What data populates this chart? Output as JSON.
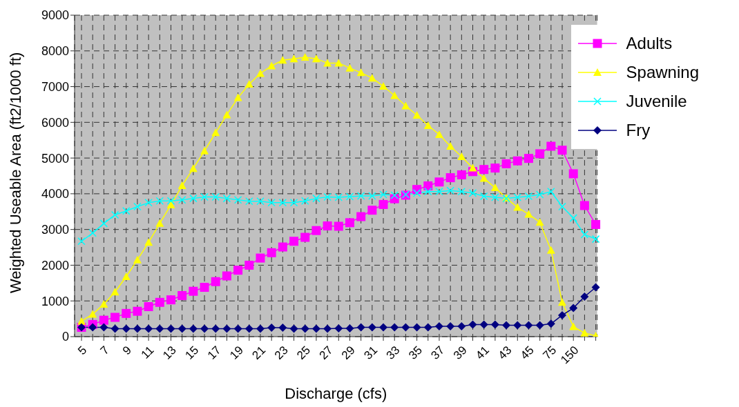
{
  "chart_data": {
    "type": "line",
    "xlabel": "Discharge (cfs)",
    "ylabel": "Weighted Useable Area (ft2/1000  ft)",
    "categories": [
      "5",
      null,
      "7",
      null,
      "9",
      null,
      "11",
      null,
      "13",
      null,
      "15",
      null,
      "17",
      null,
      "19",
      null,
      "21",
      null,
      "23",
      null,
      "25",
      null,
      "27",
      null,
      "29",
      null,
      "31",
      null,
      "33",
      null,
      "35",
      null,
      "37",
      null,
      "39",
      null,
      "41",
      null,
      "43",
      null,
      "45",
      null,
      "75",
      null,
      "150",
      null,
      null
    ],
    "ylim": [
      0,
      9000
    ],
    "yticks": [
      0,
      1000,
      2000,
      3000,
      4000,
      5000,
      6000,
      7000,
      8000,
      9000
    ],
    "grid": true,
    "legend": "top right",
    "line_style": "solid",
    "series": [
      {
        "name": "Adults",
        "color": "#ff00ff",
        "marker": "square",
        "values": [
          260,
          340,
          460,
          540,
          650,
          710,
          840,
          960,
          1030,
          1150,
          1270,
          1380,
          1540,
          1700,
          1860,
          2000,
          2200,
          2350,
          2510,
          2670,
          2780,
          2970,
          3100,
          3090,
          3190,
          3360,
          3540,
          3700,
          3860,
          3960,
          4120,
          4220,
          4330,
          4450,
          4530,
          4620,
          4680,
          4720,
          4840,
          4920,
          4990,
          5120,
          5330,
          5220,
          4560,
          3670,
          3140
        ]
      },
      {
        "name": "Spawning",
        "color": "#ffff00",
        "marker": "triangle",
        "values": [
          430,
          630,
          910,
          1250,
          1680,
          2150,
          2640,
          3170,
          3690,
          4230,
          4710,
          5200,
          5710,
          6210,
          6690,
          7070,
          7370,
          7580,
          7740,
          7780,
          7820,
          7780,
          7660,
          7660,
          7520,
          7390,
          7240,
          7010,
          6750,
          6460,
          6200,
          5910,
          5660,
          5330,
          5040,
          4720,
          4430,
          4170,
          3880,
          3620,
          3430,
          3200,
          2420,
          960,
          280,
          100,
          20
        ]
      },
      {
        "name": "Juvenile",
        "color": "#00ffff",
        "marker": "cross",
        "values": [
          2670,
          2900,
          3170,
          3410,
          3520,
          3640,
          3750,
          3800,
          3800,
          3830,
          3870,
          3910,
          3910,
          3870,
          3830,
          3790,
          3790,
          3750,
          3750,
          3750,
          3800,
          3870,
          3910,
          3900,
          3920,
          3940,
          3940,
          3980,
          3960,
          3980,
          4020,
          4060,
          4060,
          4090,
          4060,
          4020,
          3930,
          3900,
          3870,
          3900,
          3930,
          3980,
          4060,
          3640,
          3320,
          2860,
          2730
        ]
      },
      {
        "name": "Fry",
        "color": "#000080",
        "marker": "diamond",
        "values": [
          260,
          260,
          260,
          220,
          220,
          220,
          220,
          220,
          220,
          220,
          220,
          220,
          220,
          220,
          220,
          220,
          220,
          250,
          250,
          220,
          220,
          220,
          220,
          230,
          230,
          260,
          260,
          260,
          260,
          260,
          260,
          260,
          290,
          290,
          290,
          340,
          340,
          340,
          320,
          320,
          320,
          320,
          360,
          600,
          800,
          1120,
          1380
        ]
      }
    ]
  }
}
